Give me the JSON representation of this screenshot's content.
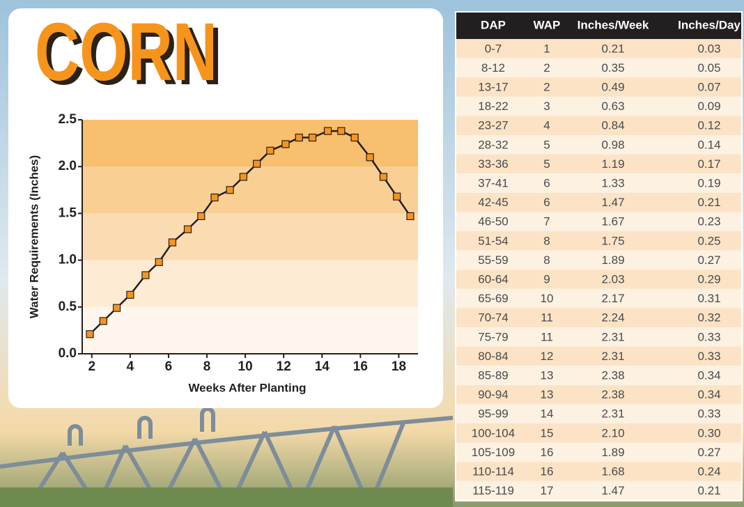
{
  "chart_data": {
    "type": "line",
    "title": "CORN",
    "x_label": "Weeks After Planting",
    "y_label": "Water Requirements (Inches)",
    "x": [
      1.9,
      2.6,
      3.3,
      4.0,
      4.8,
      5.5,
      6.2,
      7.0,
      7.7,
      8.4,
      9.2,
      9.9,
      10.6,
      11.3,
      12.1,
      12.8,
      13.5,
      14.3,
      15.0,
      15.7,
      16.5,
      17.2,
      17.9,
      18.6
    ],
    "values": [
      0.21,
      0.35,
      0.49,
      0.63,
      0.84,
      0.98,
      1.19,
      1.33,
      1.47,
      1.67,
      1.75,
      1.89,
      2.03,
      2.17,
      2.24,
      2.31,
      2.31,
      2.38,
      2.38,
      2.31,
      2.1,
      1.89,
      1.68,
      1.47
    ],
    "color": "#f7941d",
    "xlim": [
      1.5,
      19.0
    ],
    "xticks": [
      2,
      4,
      6,
      8,
      10,
      12,
      14,
      16,
      18
    ],
    "ylim": [
      0,
      2.5
    ],
    "yticks": [
      {
        "value": 0,
        "label": "0.0"
      },
      0.5,
      {
        "value": 1,
        "label": "1.0"
      },
      1.5,
      {
        "value": 2,
        "label": "2.0"
      },
      2.5
    ]
  },
  "table": {
    "header": [
      "DAP",
      "WAP",
      "Inches/Week",
      "Inches/Day"
    ],
    "rows": [
      [
        "0-7",
        "1",
        "0.21",
        "0.03"
      ],
      [
        "8-12",
        "2",
        "0.35",
        "0.05"
      ],
      [
        "13-17",
        "2",
        "0.49",
        "0.07"
      ],
      [
        "18-22",
        "3",
        "0.63",
        "0.09"
      ],
      [
        "23-27",
        "4",
        "0.84",
        "0.12"
      ],
      [
        "28-32",
        "5",
        "0.98",
        "0.14"
      ],
      [
        "33-36",
        "5",
        "1.19",
        "0.17"
      ],
      [
        "37-41",
        "6",
        "1.33",
        "0.19"
      ],
      [
        "42-45",
        "6",
        "1.47",
        "0.21"
      ],
      [
        "46-50",
        "7",
        "1.67",
        "0.23"
      ],
      [
        "51-54",
        "8",
        "1.75",
        "0.25"
      ],
      [
        "55-59",
        "8",
        "1.89",
        "0.27"
      ],
      [
        "60-64",
        "9",
        "2.03",
        "0.29"
      ],
      [
        "65-69",
        "10",
        "2.17",
        "0.31"
      ],
      [
        "70-74",
        "11",
        "2.24",
        "0.32"
      ],
      [
        "75-79",
        "11",
        "2.31",
        "0.33"
      ],
      [
        "80-84",
        "12",
        "2.31",
        "0.33"
      ],
      [
        "85-89",
        "13",
        "2.38",
        "0.34"
      ],
      [
        "90-94",
        "13",
        "2.38",
        "0.34"
      ],
      [
        "95-99",
        "14",
        "2.31",
        "0.33"
      ],
      [
        "100-104",
        "15",
        "2.10",
        "0.30"
      ],
      [
        "105-109",
        "16",
        "1.89",
        "0.27"
      ],
      [
        "110-114",
        "16",
        "1.68",
        "0.24"
      ],
      [
        "115-119",
        "17",
        "1.47",
        "0.21"
      ]
    ]
  }
}
